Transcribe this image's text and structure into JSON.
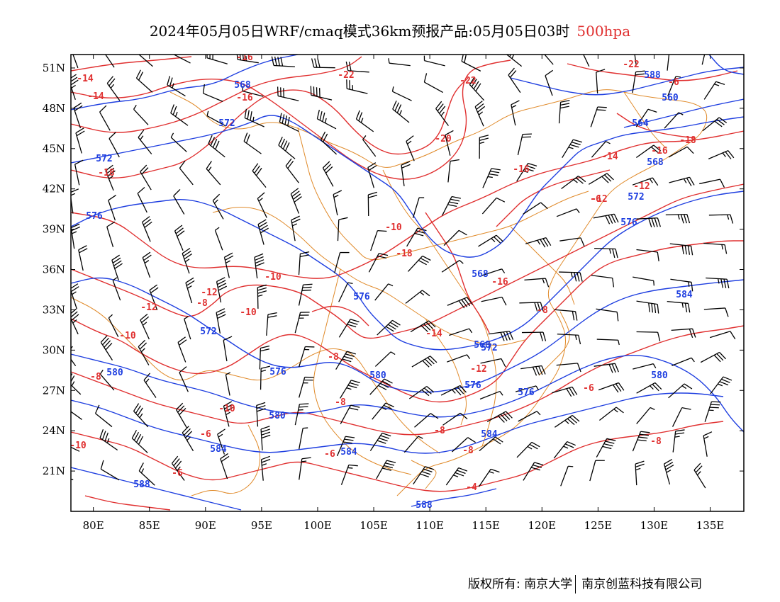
{
  "title": {
    "main": "2024年05月05日WRF/cmaq模式36km预报产品:05月05日03时",
    "level": "500hpa"
  },
  "colors": {
    "temperature": "#e03030",
    "height": "#1f3fe0",
    "boundary": "#e08a2a",
    "wind": "#000000"
  },
  "axes": {
    "x_ticks": [
      "80E",
      "85E",
      "90E",
      "95E",
      "100E",
      "105E",
      "110E",
      "115E",
      "120E",
      "125E",
      "130E",
      "135E"
    ],
    "y_ticks": [
      "51N",
      "48N",
      "45N",
      "42N",
      "39N",
      "36N",
      "33N",
      "30N",
      "27N",
      "24N",
      "21N"
    ],
    "x_values": [
      80,
      85,
      90,
      95,
      100,
      105,
      110,
      115,
      120,
      125,
      130,
      135
    ],
    "y_values": [
      51,
      48,
      45,
      42,
      39,
      36,
      33,
      30,
      27,
      24,
      21
    ],
    "lon_range": [
      78,
      138
    ],
    "lat_range": [
      18,
      52
    ]
  },
  "temperature_labels": [
    "-16",
    "-14",
    "-14",
    "-16",
    "-22",
    "-22",
    "-22",
    "-20",
    "-16",
    "-14",
    "-16",
    "-18",
    "-18",
    "-12",
    "-12",
    "-10",
    "-18",
    "-16",
    "-12",
    "-10",
    "-12",
    "-8",
    "-10",
    "-10",
    "-8",
    "-14",
    "-12",
    "-8",
    "-8",
    "-8",
    "-6",
    "-10",
    "-8",
    "-6",
    "-10",
    "-8",
    "-6",
    "-8",
    "-6",
    "-4",
    "-6",
    "-6"
  ],
  "height_labels": [
    "568",
    "572",
    "572",
    "576",
    "576",
    "572",
    "580",
    "576",
    "580",
    "580",
    "576",
    "584",
    "588",
    "584",
    "568",
    "560",
    "564",
    "568",
    "572",
    "576",
    "568",
    "572",
    "576",
    "580",
    "584",
    "588",
    "584",
    "588"
  ],
  "footer": {
    "left": "版权所有: 南京大学",
    "right": "南京创蓝科技有限公司"
  }
}
